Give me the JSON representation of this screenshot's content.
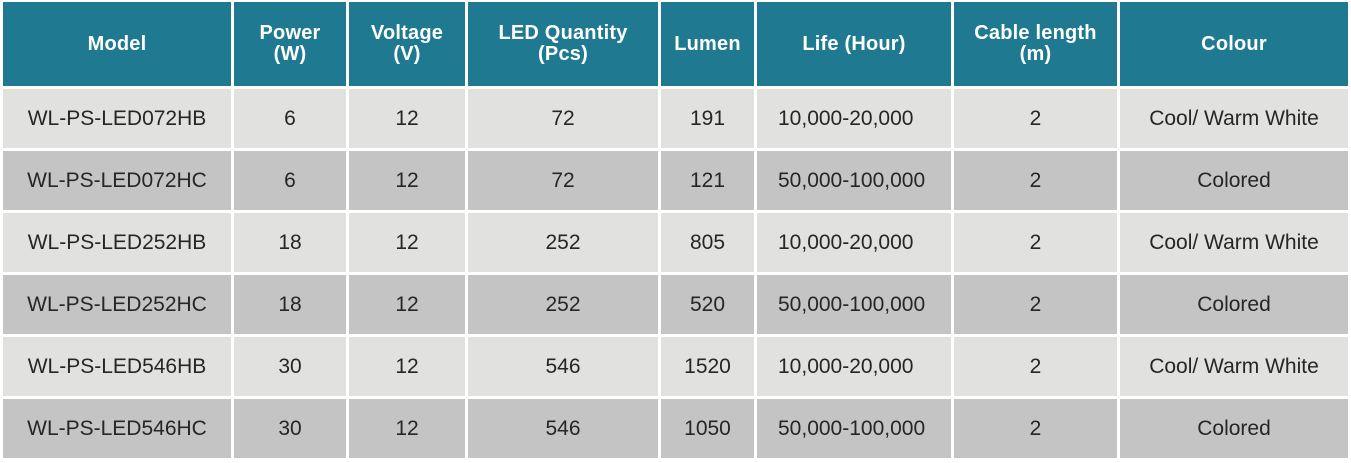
{
  "table": {
    "headers": [
      {
        "line1": "Model",
        "line2": ""
      },
      {
        "line1": "Power",
        "line2": "(W)"
      },
      {
        "line1": "Voltage",
        "line2": "(V)"
      },
      {
        "line1": "LED Quantity",
        "line2": "(Pcs)"
      },
      {
        "line1": "Lumen",
        "line2": ""
      },
      {
        "line1": "Life (Hour)",
        "line2": ""
      },
      {
        "line1": "Cable length",
        "line2": "(m)"
      },
      {
        "line1": "Colour",
        "line2": ""
      }
    ],
    "rows": [
      [
        "WL-PS-LED072HB",
        "6",
        "12",
        "72",
        "191",
        "10,000-20,000",
        "2",
        "Cool/ Warm White"
      ],
      [
        "WL-PS-LED072HC",
        "6",
        "12",
        "72",
        "121",
        "50,000-100,000",
        "2",
        "Colored"
      ],
      [
        "WL-PS-LED252HB",
        "18",
        "12",
        "252",
        "805",
        "10,000-20,000",
        "2",
        "Cool/ Warm White"
      ],
      [
        "WL-PS-LED252HC",
        "18",
        "12",
        "252",
        "520",
        "50,000-100,000",
        "2",
        "Colored"
      ],
      [
        "WL-PS-LED546HB",
        "30",
        "12",
        "546",
        "1520",
        "10,000-20,000",
        "2",
        "Cool/ Warm White"
      ],
      [
        "WL-PS-LED546HC",
        "30",
        "12",
        "546",
        "1050",
        "50,000-100,000",
        "2",
        "Colored"
      ]
    ]
  },
  "colors": {
    "header_bg": "#1f7a91",
    "row_light": "#e1e1e0",
    "row_dark": "#c4c4c4"
  }
}
